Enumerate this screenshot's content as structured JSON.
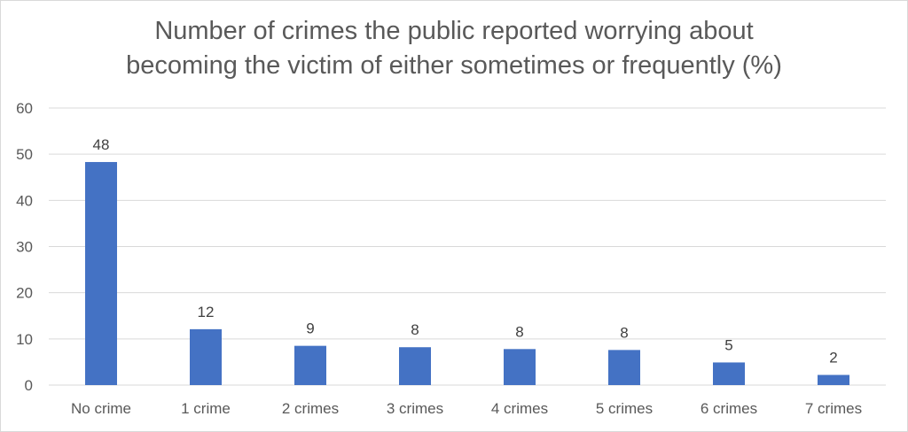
{
  "chart_data": {
    "type": "bar",
    "title_lines": [
      "Number of crimes the public reported worrying about",
      "becoming the victim of either sometimes or frequently (%)"
    ],
    "categories": [
      "No crime",
      "1 crime",
      "2 crimes",
      "3 crimes",
      "4 crimes",
      "5 crimes",
      "6 crimes",
      "7 crimes"
    ],
    "values": [
      48.3,
      12.1,
      8.5,
      8.2,
      7.8,
      7.6,
      4.9,
      2.2
    ],
    "data_labels": [
      "48",
      "12",
      "9",
      "8",
      "8",
      "8",
      "5",
      "2"
    ],
    "y_ticks": [
      "0",
      "10",
      "20",
      "30",
      "40",
      "50",
      "60"
    ],
    "ylim": [
      0,
      60
    ],
    "grid": true,
    "legend": "none",
    "bar_color": "#4472c4"
  }
}
